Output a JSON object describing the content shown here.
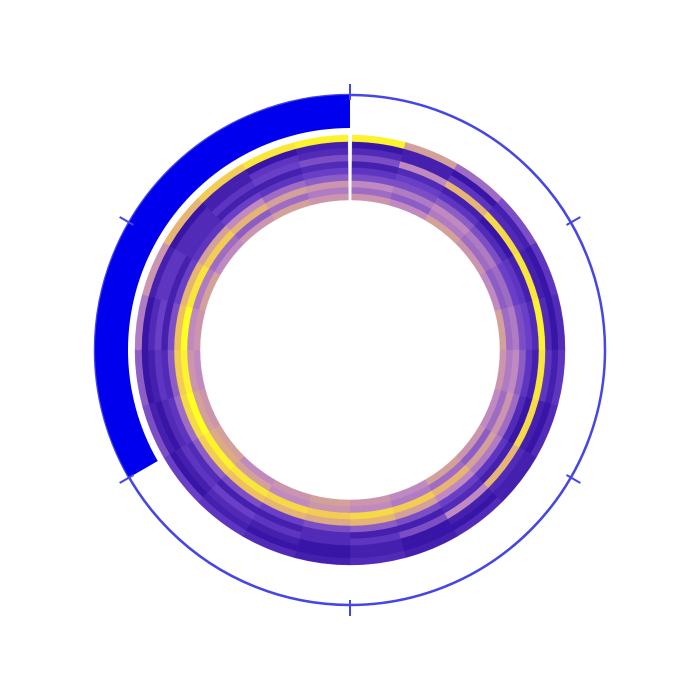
{
  "chart_data": {
    "type": "radial_heatmap",
    "colorscale": [
      "#2c0b9e",
      "#6a3fc8",
      "#c08ac0",
      "#f0c060",
      "#ffff20"
    ],
    "zlim": [
      0,
      1
    ],
    "values": [
      [
        0.55,
        0.5,
        0.6,
        0.55,
        0.5,
        0.6,
        0.55,
        0.5,
        0.55,
        0.6,
        0.5,
        0.55,
        0.6,
        0.55,
        0.5,
        0.6,
        0.55,
        0.5,
        0.55,
        0.6,
        0.5,
        0.55,
        0.6,
        0.55
      ],
      [
        0.4,
        0.35,
        0.45,
        0.4,
        0.35,
        0.4,
        0.45,
        0.4,
        0.35,
        0.4,
        0.45,
        0.5,
        0.55,
        0.5,
        0.6,
        0.65,
        0.6,
        0.55,
        0.5,
        0.45,
        0.4,
        0.35,
        0.4,
        0.45
      ],
      [
        0.5,
        0.45,
        0.5,
        0.45,
        0.4,
        0.45,
        0.5,
        0.55,
        0.6,
        0.7,
        0.8,
        0.85,
        0.8,
        0.85,
        0.9,
        0.95,
        1,
        0.95,
        1,
        0.9,
        0.8,
        0.7,
        0.6,
        0.55
      ],
      [
        0.3,
        0.3,
        0.35,
        0.3,
        0.25,
        0.3,
        0.35,
        0.4,
        0.45,
        0.5,
        0.6,
        0.7,
        0.65,
        0.7,
        0.75,
        0.8,
        0.85,
        0.8,
        0.75,
        0.7,
        0.6,
        0.5,
        0.4,
        0.35
      ],
      [
        0.2,
        0.25,
        0.2,
        0.15,
        0.2,
        0.25,
        0.2,
        0.15,
        0.2,
        0.25,
        0.3,
        0.35,
        0.3,
        0.25,
        0.3,
        0.35,
        0.4,
        0.35,
        0.3,
        0.25,
        0.2,
        0.25,
        0.2,
        0.25
      ],
      [
        0.1,
        0.15,
        0.1,
        0.05,
        0.1,
        0.15,
        0.1,
        0.05,
        0.1,
        0.15,
        0.1,
        0.1,
        0.15,
        0.1,
        0.1,
        0.15,
        0.2,
        0.15,
        0.1,
        0.1,
        0.15,
        0.1,
        0.1,
        0.15
      ],
      [
        0.3,
        0.5,
        0.7,
        0.85,
        0.9,
        0.95,
        0.9,
        0.85,
        0.7,
        0.5,
        0.3,
        0.2,
        0.15,
        0.2,
        0.25,
        0.2,
        0.15,
        0.2,
        0.25,
        0.2,
        0.15,
        0.2,
        0.25,
        0.3
      ],
      [
        0.15,
        0.1,
        0.2,
        0.15,
        0.1,
        0.15,
        0.2,
        0.1,
        0.15,
        0.1,
        0.05,
        0.1,
        0.05,
        0.1,
        0.15,
        0.1,
        0.05,
        0.1,
        0.15,
        0.2,
        0.15,
        0.1,
        0.2,
        0.15
      ],
      [
        0.05,
        0.1,
        0.05,
        0.1,
        0.05,
        0.05,
        0.1,
        0.05,
        0.1,
        0.05,
        0.05,
        0.1,
        0.05,
        0.05,
        0.1,
        0.05,
        0.1,
        0.05,
        0.05,
        0.1,
        0.05,
        0.1,
        0.05,
        0.1
      ],
      [
        0.95,
        0.6,
        0.4,
        0.3,
        0.2,
        0.15,
        0.2,
        0.15,
        0.1,
        0.15,
        0.1,
        0.15,
        0.1,
        0.15,
        0.2,
        0.25,
        0.3,
        0.35,
        0.45,
        0.55,
        0.7,
        0.8,
        0.9,
        0.95
      ]
    ],
    "ring": {
      "value": 120,
      "lim": [
        0,
        360
      ],
      "ticks": [
        0,
        60,
        120,
        180,
        240,
        300
      ],
      "color": "#0000ee",
      "line_color": "#4646e6"
    }
  }
}
